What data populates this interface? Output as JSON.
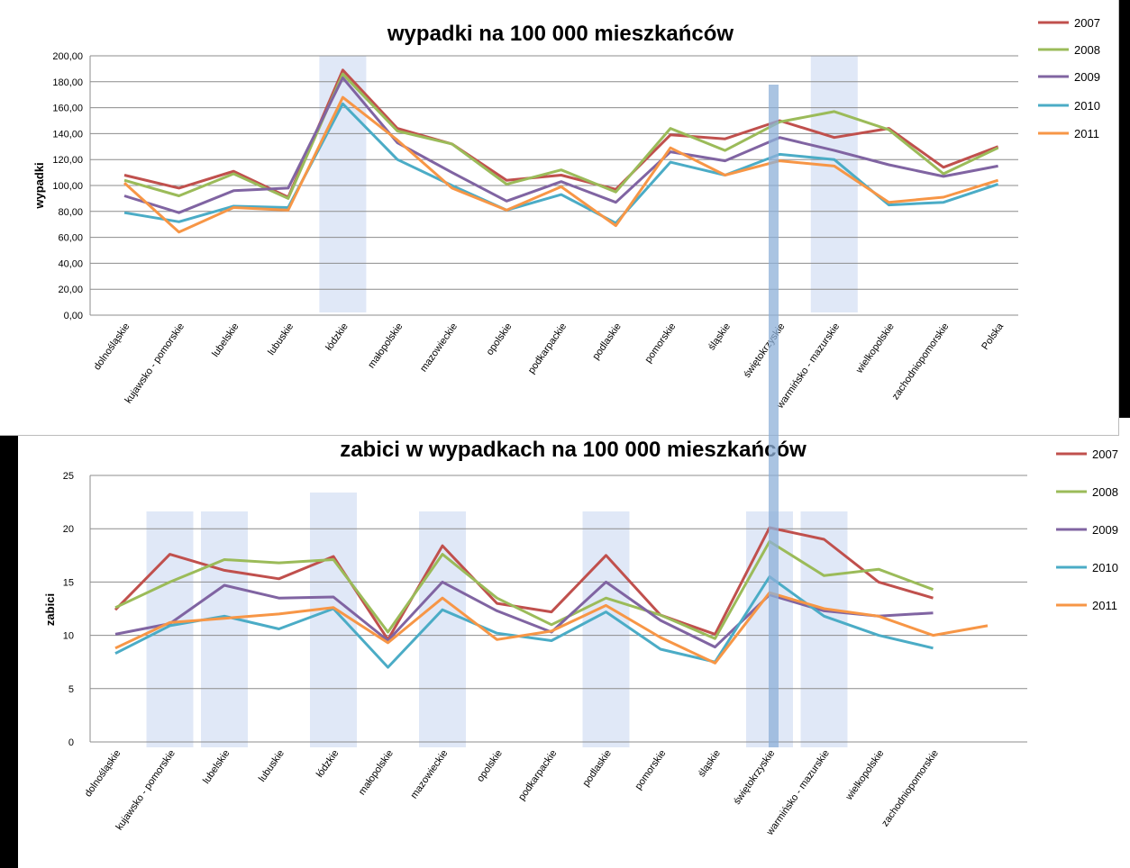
{
  "chart_data": [
    {
      "type": "line",
      "title": "wypadki na 100 000 mieszkańców",
      "ylabel": "wypadki",
      "xlabel": "",
      "ylim": [
        0,
        200
      ],
      "yticks": [
        "0,00",
        "20,00",
        "40,00",
        "60,00",
        "80,00",
        "100,00",
        "120,00",
        "140,00",
        "160,00",
        "180,00",
        "200,00"
      ],
      "legend_position": "right",
      "grid": true,
      "categories": [
        "dolnośląskie",
        "kujawsko - pomorskie",
        "lubelskie",
        "lubuskie",
        "łódzkie",
        "małopolskie",
        "mazowieckie",
        "opolskie",
        "podkarpackie",
        "podlaskie",
        "pomorskie",
        "śląskie",
        "świętokrzyskie",
        "warmińsko - mazurskie",
        "wielkopolskie",
        "zachodniopomorskie",
        "Polska"
      ],
      "highlight_categories": [
        4,
        13
      ],
      "series": [
        {
          "name": "2007",
          "color": "#c0504d",
          "values": [
            108,
            98,
            111,
            91,
            189,
            144,
            132,
            104,
            108,
            97,
            139,
            136,
            150,
            137,
            144,
            114,
            130
          ]
        },
        {
          "name": "2008",
          "color": "#9bbb59",
          "values": [
            104,
            92,
            109,
            90,
            186,
            142,
            132,
            101,
            112,
            95,
            144,
            127,
            149,
            157,
            143,
            109,
            129
          ]
        },
        {
          "name": "2009",
          "color": "#8064a2",
          "values": [
            92,
            79,
            96,
            98,
            183,
            133,
            110,
            88,
            103,
            87,
            126,
            119,
            137,
            127,
            116,
            107,
            115
          ]
        },
        {
          "name": "2010",
          "color": "#4bacc6",
          "values": [
            79,
            72,
            84,
            83,
            163,
            120,
            100,
            81,
            93,
            71,
            118,
            108,
            124,
            120,
            85,
            87,
            101
          ]
        },
        {
          "name": "2011",
          "color": "#f79646",
          "values": [
            102,
            64,
            83,
            81,
            168,
            135,
            98,
            81,
            99,
            69,
            129,
            108,
            119,
            115,
            87,
            91,
            104
          ]
        }
      ]
    },
    {
      "type": "line",
      "title": "zabici w wypadkach na 100 000 mieszkańców",
      "ylabel": "zabici",
      "xlabel": "",
      "ylim": [
        0,
        25
      ],
      "yticks": [
        "0",
        "5",
        "10",
        "15",
        "20",
        "25"
      ],
      "legend_position": "right",
      "grid": true,
      "categories": [
        "dolnośląskie",
        "kujawsko - pomorskie",
        "lubelskie",
        "lubuskie",
        "łódzkie",
        "małopolskie",
        "mazowieckie",
        "opolskie",
        "podkarpackie",
        "podlaskie",
        "pomorskie",
        "śląskie",
        "świętokrzyskie",
        "warmińsko - mazurskie",
        "wielkopolskie",
        "zachodniopomorskie",
        ""
      ],
      "highlight_categories": [
        1,
        2,
        4,
        6,
        9,
        12,
        13
      ],
      "series": [
        {
          "name": "2007",
          "color": "#c0504d",
          "values": [
            12.4,
            17.6,
            16.1,
            15.3,
            17.4,
            9.6,
            18.4,
            13.0,
            12.2,
            17.5,
            11.9,
            10.1,
            20.1,
            19.0,
            15.0,
            13.5,
            null
          ]
        },
        {
          "name": "2008",
          "color": "#9bbb59",
          "values": [
            12.6,
            15.0,
            17.1,
            16.8,
            17.1,
            10.3,
            17.6,
            13.5,
            11.0,
            13.5,
            11.9,
            9.7,
            18.8,
            15.6,
            16.2,
            14.3,
            null
          ]
        },
        {
          "name": "2009",
          "color": "#8064a2",
          "values": [
            10.1,
            11.1,
            14.7,
            13.5,
            13.6,
            9.5,
            15.0,
            12.3,
            10.3,
            15.0,
            11.4,
            8.9,
            13.8,
            12.3,
            11.8,
            12.1,
            null
          ]
        },
        {
          "name": "2010",
          "color": "#4bacc6",
          "values": [
            8.3,
            10.9,
            11.8,
            10.6,
            12.5,
            7.0,
            12.4,
            10.2,
            9.5,
            12.2,
            8.7,
            7.5,
            15.5,
            11.8,
            10.0,
            8.8,
            null
          ]
        },
        {
          "name": "2011",
          "color": "#f79646",
          "values": [
            8.8,
            11.2,
            11.6,
            12.0,
            12.6,
            9.3,
            13.5,
            9.6,
            10.4,
            12.8,
            9.8,
            7.4,
            14.0,
            12.5,
            11.8,
            10.0,
            10.9
          ]
        }
      ]
    }
  ]
}
